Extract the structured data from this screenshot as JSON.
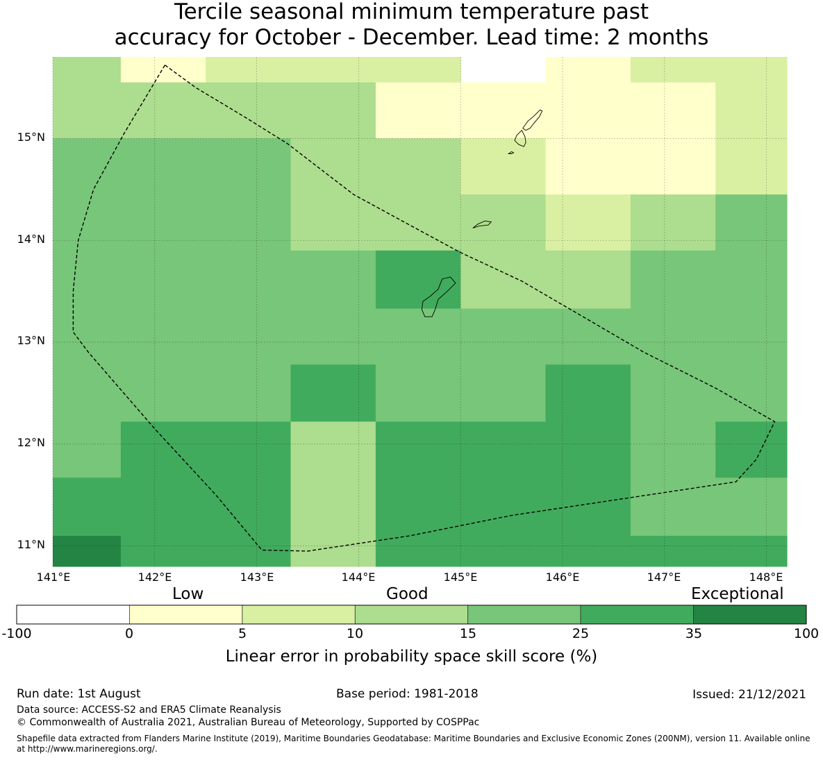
{
  "title_line1": "Tercile seasonal minimum temperature past",
  "title_line2": "accuracy for October - December. Lead time: 2 months",
  "map": {
    "lat_labels": [
      "15°N",
      "14°N",
      "13°N",
      "12°N",
      "11°N"
    ],
    "lon_labels": [
      "141°E",
      "142°E",
      "143°E",
      "144°E",
      "145°E",
      "146°E",
      "147°E",
      "148°E"
    ],
    "lon_range": [
      141.0,
      148.2
    ],
    "lat_range": [
      10.8,
      15.8
    ],
    "gridlines": true,
    "grid_columns_lon": [
      141.0,
      141.667,
      142.5,
      143.333,
      144.167,
      145.0,
      145.833,
      146.667,
      147.5,
      148.2
    ],
    "grid_rows_lat": [
      15.8,
      15.55,
      15.0,
      14.45,
      13.9,
      13.33,
      12.78,
      12.22,
      11.67,
      11.1,
      10.8
    ],
    "cell_classes": [
      [
        3,
        1,
        2,
        2,
        2,
        -1,
        1,
        2,
        2
      ],
      [
        3,
        3,
        3,
        3,
        1,
        1,
        1,
        1,
        2
      ],
      [
        4,
        4,
        4,
        3,
        3,
        2,
        1,
        1,
        2
      ],
      [
        4,
        4,
        4,
        3,
        3,
        3,
        2,
        3,
        4
      ],
      [
        4,
        4,
        4,
        4,
        5,
        3,
        3,
        4,
        4
      ],
      [
        4,
        4,
        4,
        4,
        4,
        4,
        4,
        4,
        4
      ],
      [
        4,
        4,
        4,
        5,
        4,
        4,
        5,
        4,
        4
      ],
      [
        4,
        5,
        5,
        3,
        5,
        5,
        5,
        4,
        5
      ],
      [
        5,
        5,
        5,
        3,
        5,
        5,
        5,
        4,
        4
      ],
      [
        6,
        5,
        5,
        3,
        5,
        5,
        5,
        5,
        5
      ]
    ],
    "eez_boundary": [
      [
        142.1,
        15.72
      ],
      [
        142.4,
        15.5
      ],
      [
        142.9,
        15.2
      ],
      [
        143.3,
        14.95
      ],
      [
        143.95,
        14.45
      ],
      [
        144.5,
        14.15
      ],
      [
        145.0,
        13.88
      ],
      [
        145.6,
        13.6
      ],
      [
        146.2,
        13.25
      ],
      [
        146.8,
        12.9
      ],
      [
        147.5,
        12.55
      ],
      [
        148.08,
        12.22
      ],
      [
        147.9,
        11.85
      ],
      [
        147.7,
        11.63
      ],
      [
        147.5,
        11.6
      ],
      [
        146.5,
        11.45
      ],
      [
        145.5,
        11.3
      ],
      [
        144.5,
        11.1
      ],
      [
        143.5,
        10.95
      ],
      [
        143.05,
        10.96
      ],
      [
        142.6,
        11.5
      ],
      [
        142.0,
        12.15
      ],
      [
        141.35,
        12.9
      ],
      [
        141.2,
        13.1
      ],
      [
        141.2,
        13.5
      ],
      [
        141.25,
        14.0
      ],
      [
        141.4,
        14.5
      ],
      [
        141.7,
        15.05
      ],
      [
        142.1,
        15.72
      ]
    ],
    "islands": [
      [
        [
          145.78,
          15.28
        ],
        [
          145.72,
          15.22
        ],
        [
          145.66,
          15.17
        ],
        [
          145.61,
          15.1
        ],
        [
          145.64,
          15.08
        ],
        [
          145.68,
          15.1
        ],
        [
          145.72,
          15.15
        ],
        [
          145.77,
          15.21
        ],
        [
          145.8,
          15.27
        ],
        [
          145.78,
          15.28
        ]
      ],
      [
        [
          145.6,
          15.08
        ],
        [
          145.55,
          15.03
        ],
        [
          145.53,
          14.98
        ],
        [
          145.57,
          14.94
        ],
        [
          145.62,
          14.92
        ],
        [
          145.64,
          14.96
        ],
        [
          145.63,
          15.02
        ],
        [
          145.6,
          15.08
        ]
      ],
      [
        [
          145.5,
          14.87
        ],
        [
          145.47,
          14.85
        ],
        [
          145.5,
          14.85
        ],
        [
          145.52,
          14.86
        ],
        [
          145.5,
          14.87
        ]
      ],
      [
        [
          145.12,
          14.12
        ],
        [
          145.17,
          14.16
        ],
        [
          145.24,
          14.19
        ],
        [
          145.3,
          14.18
        ],
        [
          145.27,
          14.15
        ],
        [
          145.18,
          14.14
        ],
        [
          145.12,
          14.12
        ]
      ],
      [
        [
          144.65,
          13.25
        ],
        [
          144.62,
          13.32
        ],
        [
          144.63,
          13.4
        ],
        [
          144.7,
          13.45
        ],
        [
          144.78,
          13.52
        ],
        [
          144.82,
          13.62
        ],
        [
          144.9,
          13.64
        ],
        [
          144.95,
          13.58
        ],
        [
          144.87,
          13.5
        ],
        [
          144.78,
          13.42
        ],
        [
          144.75,
          13.32
        ],
        [
          144.72,
          13.25
        ],
        [
          144.65,
          13.25
        ]
      ]
    ]
  },
  "colorbar": {
    "word_low": "Low",
    "word_good": "Good",
    "word_exceptional": "Exceptional",
    "ticks": [
      "-100",
      "0",
      "5",
      "10",
      "15",
      "25",
      "35",
      "100"
    ],
    "colors": [
      "#ffffff",
      "#ffffcc",
      "#d9f0a3",
      "#addd8e",
      "#78c679",
      "#41ab5d",
      "#238443"
    ],
    "title": "Linear error in probability space skill score (%)"
  },
  "footer": {
    "run_date": "Run date: 1st August",
    "base_period": "Base period: 1981-2018",
    "issued": "Issued: 21/12/2021",
    "data_source": "Data source: ACCESS-S2 and ERA5 Climate Reanalysis",
    "copyright": "© Commonwealth of Australia 2021, Australian Bureau of Meteorology, Supported by COSPPac",
    "shapefile_note": "Shapefile data extracted from Flanders Marine Institute (2019), Maritime Boundaries Geodatabase: Maritime Boundaries and Exclusive Economic Zones (200NM), version 11. Available online at http://www.marineregions.org/."
  }
}
